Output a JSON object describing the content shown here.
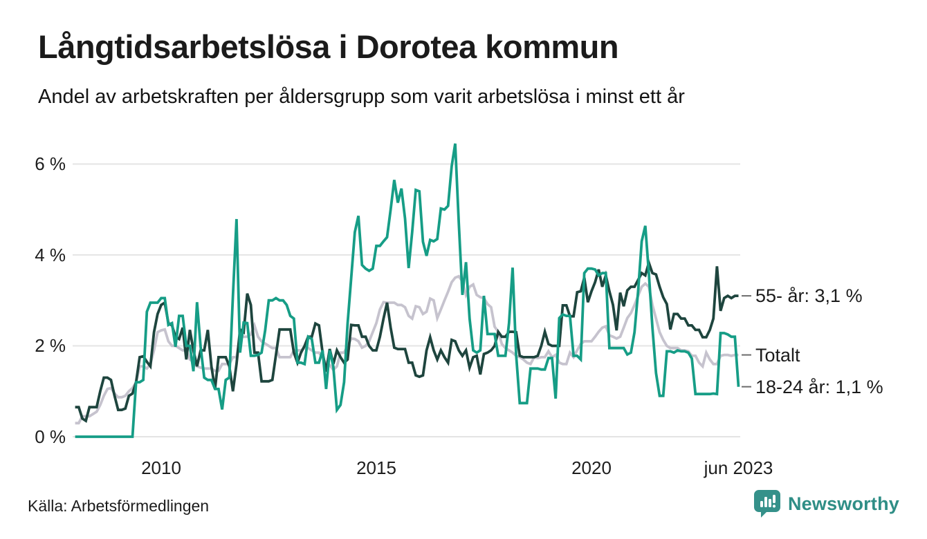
{
  "header": {
    "title": "Långtidsarbetslösa i Dorotea kommun",
    "subtitle": "Andel av arbetskraften per åldersgrupp som varit arbetslösa i minst ett år"
  },
  "footer": {
    "source": "Källa: Arbetsförmedlingen",
    "brand": "Newsworthy"
  },
  "colors": {
    "teal_series": "#169d86",
    "dark_series": "#1e453e",
    "gray_series": "#c6c3ce",
    "grid": "#e4e4e4",
    "end_tick": "#6b6b6b",
    "brand_teal": "#35918a"
  },
  "chart_data": {
    "type": "line",
    "title": "Långtidsarbetslösa i Dorotea kommun",
    "subtitle": "Andel av arbetskraften per åldersgrupp som varit arbetslösa i minst ett år",
    "x_unit": "month",
    "x_start": "2008-01",
    "x_end": "2023-06",
    "ylim": [
      0,
      6.8
    ],
    "grid": true,
    "legend_position": "right-end-labels",
    "y_ticks": [
      {
        "value": 0,
        "label": "0 %"
      },
      {
        "value": 2,
        "label": "2 %"
      },
      {
        "value": 4,
        "label": "4 %"
      },
      {
        "value": 6,
        "label": "6 %"
      }
    ],
    "x_ticks": [
      {
        "t": 2010.0,
        "label": "2010"
      },
      {
        "t": 2015.0,
        "label": "2015"
      },
      {
        "t": 2020.0,
        "label": "2020"
      },
      {
        "t": 2023.4167,
        "label": "jun 2023"
      }
    ],
    "series": [
      {
        "name": "Totalt",
        "end_label": "Totalt",
        "color": "#c6c3ce",
        "values": [
          0.3,
          0.3,
          0.45,
          0.45,
          0.45,
          0.5,
          0.55,
          0.7,
          0.9,
          1.05,
          1.07,
          0.95,
          0.87,
          0.87,
          0.9,
          1.0,
          1.07,
          1.2,
          1.55,
          1.55,
          1.5,
          1.6,
          1.9,
          2.3,
          2.34,
          2.36,
          2.1,
          2.0,
          2.0,
          1.95,
          1.9,
          1.9,
          1.7,
          1.65,
          1.55,
          1.52,
          1.5,
          1.5,
          1.5,
          1.45,
          1.45,
          1.6,
          1.6,
          1.6,
          1.75,
          1.75,
          2.2,
          2.2,
          2.2,
          2.25,
          2.45,
          2.2,
          2.1,
          2.05,
          2.0,
          1.95,
          1.95,
          1.75,
          1.75,
          1.75,
          1.75,
          1.9,
          1.9,
          1.9,
          1.95,
          1.95,
          1.9,
          1.85,
          1.85,
          1.75,
          1.6,
          1.58,
          1.47,
          1.55,
          1.85,
          1.85,
          2.0,
          2.16,
          2.15,
          2.1,
          1.96,
          2.0,
          2.1,
          2.3,
          2.5,
          2.8,
          2.96,
          2.95,
          2.95,
          2.95,
          2.9,
          2.9,
          2.85,
          2.66,
          2.6,
          2.87,
          2.85,
          2.7,
          2.75,
          3.04,
          3.0,
          2.61,
          2.8,
          3.0,
          3.19,
          3.4,
          3.5,
          3.53,
          3.42,
          3.12,
          3.3,
          3.35,
          3.12,
          3.07,
          3.05,
          2.92,
          2.85,
          2.42,
          2.31,
          2.04,
          1.95,
          1.9,
          1.85,
          1.78,
          1.75,
          1.7,
          1.63,
          1.6,
          1.75,
          1.73,
          1.75,
          1.75,
          1.88,
          1.75,
          1.8,
          1.63,
          1.6,
          1.6,
          1.85,
          1.75,
          1.9,
          2.04,
          2.1,
          2.1,
          2.1,
          2.2,
          2.31,
          2.4,
          2.43,
          2.23,
          2.2,
          2.16,
          2.2,
          2.4,
          2.61,
          2.72,
          2.9,
          3.1,
          3.3,
          3.37,
          3.3,
          2.9,
          2.6,
          2.3,
          2.13,
          2.0,
          1.95,
          1.95,
          1.95,
          1.9,
          1.9,
          1.88,
          1.78,
          1.78,
          1.63,
          1.55,
          1.85,
          1.7,
          1.6,
          1.6,
          1.78,
          1.8,
          1.8,
          1.78,
          1.8,
          1.8
        ]
      },
      {
        "name": "55- år",
        "end_label": "55- år: 3,1 %",
        "color": "#1e453e",
        "values": [
          0.65,
          0.65,
          0.4,
          0.35,
          0.65,
          0.65,
          0.65,
          1.0,
          1.3,
          1.3,
          1.25,
          0.9,
          0.59,
          0.59,
          0.62,
          0.9,
          0.95,
          1.2,
          1.75,
          1.77,
          1.65,
          1.55,
          2.3,
          2.7,
          2.9,
          2.95,
          2.5,
          2.45,
          2.2,
          2.15,
          2.4,
          1.7,
          2.35,
          1.9,
          1.55,
          1.9,
          1.9,
          2.35,
          1.55,
          1.05,
          1.75,
          1.75,
          1.75,
          1.55,
          1.0,
          1.6,
          2.36,
          2.3,
          3.15,
          2.9,
          1.85,
          1.85,
          1.22,
          1.22,
          1.22,
          1.25,
          1.8,
          2.36,
          2.36,
          2.36,
          2.36,
          1.85,
          1.63,
          1.85,
          2.0,
          2.2,
          2.2,
          2.49,
          2.45,
          1.85,
          1.43,
          1.93,
          1.6,
          1.9,
          1.75,
          1.63,
          1.7,
          2.46,
          2.45,
          2.45,
          2.2,
          2.2,
          2.0,
          1.9,
          1.9,
          2.2,
          2.6,
          2.95,
          2.4,
          1.96,
          1.93,
          1.93,
          1.93,
          1.63,
          1.63,
          1.35,
          1.32,
          1.35,
          1.9,
          2.19,
          1.9,
          1.7,
          1.9,
          1.75,
          1.63,
          2.13,
          2.1,
          1.9,
          1.78,
          1.9,
          1.52,
          1.75,
          1.78,
          1.37,
          1.82,
          1.85,
          1.9,
          2.0,
          2.31,
          2.2,
          2.2,
          2.31,
          2.31,
          2.3,
          1.78,
          1.75,
          1.75,
          1.75,
          1.75,
          1.78,
          2.0,
          2.31,
          2.04,
          2.0,
          2.0,
          2.0,
          2.89,
          2.89,
          2.65,
          2.65,
          3.18,
          3.2,
          3.5,
          2.96,
          3.2,
          3.4,
          3.68,
          3.3,
          3.55,
          3.2,
          2.9,
          2.34,
          3.17,
          2.87,
          3.22,
          3.3,
          3.3,
          3.45,
          3.6,
          3.55,
          3.83,
          3.6,
          3.57,
          3.3,
          3.07,
          2.92,
          2.36,
          2.7,
          2.7,
          2.6,
          2.6,
          2.45,
          2.45,
          2.35,
          2.35,
          2.19,
          2.19,
          2.35,
          2.6,
          3.75,
          2.77,
          3.05,
          3.1,
          3.05,
          3.1,
          3.1
        ]
      },
      {
        "name": "18-24 år",
        "end_label": "18-24 år: 1,1 %",
        "color": "#169d86",
        "values": [
          0,
          0,
          0,
          0,
          0,
          0,
          0,
          0,
          0,
          0,
          0,
          0,
          0,
          0,
          0,
          0,
          0,
          1.2,
          1.2,
          1.25,
          2.75,
          2.95,
          2.95,
          2.95,
          3.05,
          3.05,
          2.46,
          2.5,
          1.98,
          2.66,
          2.66,
          2.0,
          2.0,
          1.44,
          2.96,
          1.98,
          1.3,
          1.25,
          1.25,
          1.05,
          1.05,
          0.6,
          1.25,
          1.3,
          3.1,
          4.79,
          1.85,
          2.51,
          2.5,
          1.78,
          1.78,
          1.8,
          1.85,
          2.34,
          3.0,
          3.0,
          3.05,
          3.0,
          3.0,
          2.9,
          2.66,
          2.6,
          1.63,
          1.63,
          1.6,
          2.2,
          2.15,
          1.63,
          1.63,
          1.9,
          1.05,
          1.9,
          1.55,
          0.59,
          0.7,
          1.2,
          2.5,
          3.5,
          4.5,
          4.86,
          3.78,
          3.7,
          3.65,
          3.7,
          4.2,
          4.2,
          4.3,
          4.39,
          5.0,
          5.65,
          5.15,
          5.46,
          4.8,
          3.71,
          4.5,
          5.43,
          5.4,
          4.29,
          3.98,
          4.33,
          4.3,
          4.35,
          5.02,
          5.0,
          5.08,
          5.95,
          6.45,
          4.7,
          3.12,
          3.84,
          2.6,
          1.9,
          1.85,
          1.9,
          3.1,
          2.26,
          2.26,
          2.26,
          1.78,
          1.78,
          1.78,
          2.5,
          3.72,
          1.8,
          0.74,
          0.74,
          0.74,
          1.5,
          1.5,
          1.5,
          1.48,
          1.48,
          1.73,
          1.73,
          0.84,
          2.61,
          2.69,
          2.66,
          2.66,
          1.78,
          1.78,
          1.7,
          3.6,
          3.7,
          3.7,
          3.68,
          3.55,
          3.6,
          3.6,
          1.95,
          1.95,
          1.95,
          1.95,
          1.95,
          1.81,
          1.85,
          2.3,
          3.2,
          4.3,
          4.64,
          3.6,
          2.4,
          1.4,
          0.9,
          0.9,
          1.88,
          1.88,
          1.85,
          1.9,
          1.88,
          1.88,
          1.85,
          1.72,
          0.94,
          0.94,
          0.94,
          0.94,
          0.94,
          0.95,
          0.94,
          2.28,
          2.28,
          2.25,
          2.2,
          2.2,
          1.1
        ]
      }
    ]
  }
}
